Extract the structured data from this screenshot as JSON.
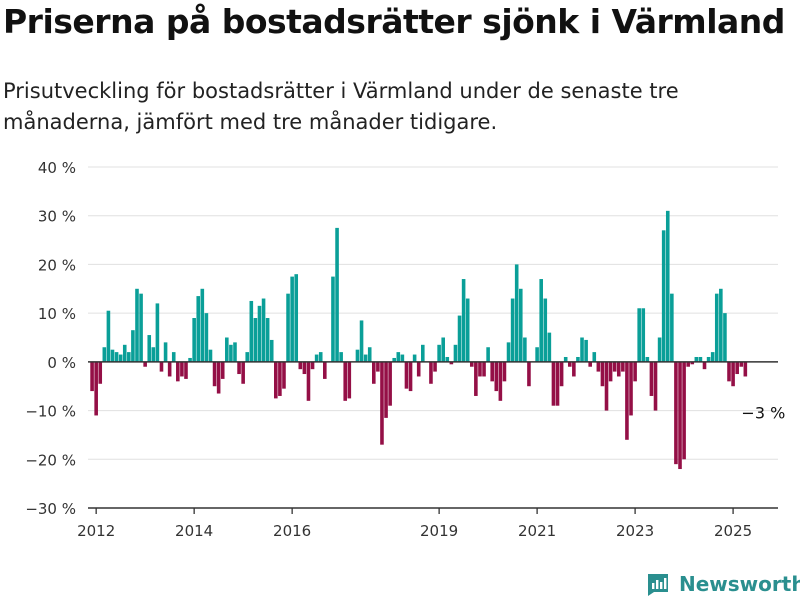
{
  "header": {
    "title": "Priserna på bostadsrätter sjönk i Värmland",
    "subtitle": "Prisutveckling för bostadsrätter i Värmland under de senaste tre månaderna, jämfört med tre månader tidigare."
  },
  "brand": {
    "name": "Newsworthy",
    "icon": "newsworthy-logo-icon"
  },
  "colors": {
    "positive": "#0a9f98",
    "negative": "#940f46",
    "grid": "#e0e0e0",
    "axis": "#333333",
    "text": "#333333"
  },
  "chart_data": {
    "type": "bar",
    "title": "Priserna på bostadsrätter sjönk i Värmland",
    "subtitle": "Prisutveckling för bostadsrätter i Värmland under de senaste tre månaderna, jämfört med tre månader tidigare.",
    "y_unit": "%",
    "ylim": [
      -30,
      40
    ],
    "y_ticks": [
      -30,
      -20,
      -10,
      0,
      10,
      20,
      30,
      40
    ],
    "y_tick_labels": [
      "−30 %",
      "−20 %",
      "−10 %",
      "0 %",
      "10 %",
      "20 %",
      "30 %",
      "40 %"
    ],
    "x_range": [
      "2011-11",
      "2025-12"
    ],
    "x_ticks": [
      "2012",
      "2014",
      "2016",
      "2019",
      "2021",
      "2023",
      "2025"
    ],
    "grid": true,
    "annotations": [
      {
        "label": "−3 %",
        "x": "2025-05",
        "value": -3
      }
    ],
    "series": [
      {
        "start": "2011-12",
        "values": [
          -6,
          -11,
          -4.5,
          3,
          10.5,
          2.5,
          2,
          1.5,
          3.5,
          2,
          6.5,
          15,
          14,
          -1,
          5.5,
          3,
          12,
          -2,
          4,
          -3,
          2,
          -4,
          -3,
          -3.5,
          0.8,
          9,
          13.5,
          15,
          10,
          2.5,
          -5,
          -6.5,
          -3.5,
          5,
          3.5,
          4,
          -2.5,
          -4.5,
          2,
          12.5,
          9,
          11.5,
          13,
          9,
          4.5,
          -7.5,
          -7,
          -5.5,
          14,
          17.5,
          18,
          -1.5,
          -2.5,
          -8,
          -1.5,
          1.5,
          2,
          -3.5,
          0,
          17.5,
          27.5,
          2,
          -8,
          -7.5,
          0,
          2.5,
          8.5,
          1.5,
          3,
          -4.5,
          -2,
          -17,
          -11.5,
          -9,
          0.8,
          2,
          1.5,
          -5.5,
          -6,
          1.5,
          -3,
          3.5,
          0,
          -4.5,
          -2,
          3.5,
          5,
          1,
          -0.5,
          3.5,
          9.5,
          17,
          13,
          -1,
          -7,
          -3,
          -3,
          3,
          -4,
          -6,
          -8,
          -4,
          4,
          13,
          20,
          15,
          5,
          -5,
          0,
          3,
          17,
          13,
          6,
          -9,
          -9,
          -5,
          1,
          -1,
          -3,
          1,
          5,
          4.5,
          -1,
          2,
          -2,
          -5,
          -10,
          -4,
          -2,
          -3,
          -2,
          -16,
          -11,
          -4,
          11,
          11,
          1,
          -7,
          -10,
          5,
          27,
          31,
          14,
          -21,
          -22,
          -20,
          -1,
          -0.5,
          1,
          1,
          -1.5,
          1,
          2,
          14,
          15,
          10,
          -4,
          -5,
          -2.5,
          -1,
          -3
        ]
      }
    ]
  }
}
